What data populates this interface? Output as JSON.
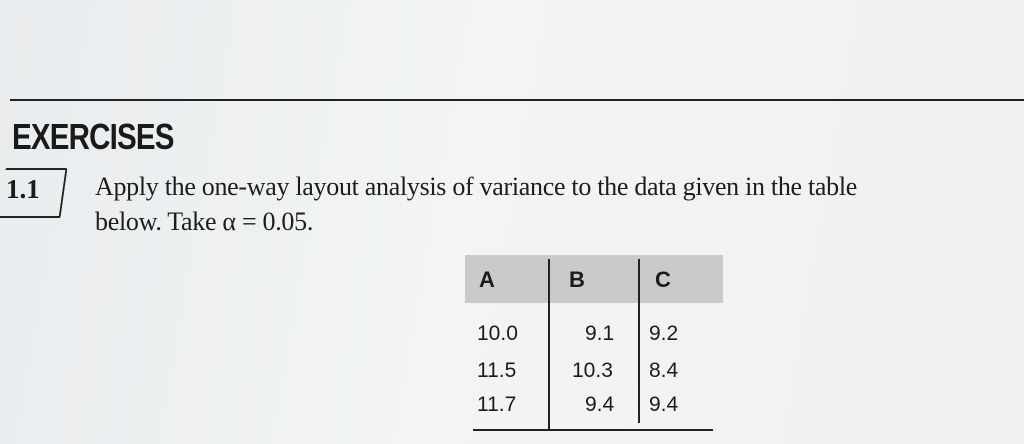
{
  "section_heading": "EXERCISES",
  "exercise": {
    "number": "1.1",
    "line1": "Apply the one-way layout analysis of variance to the data given in the table",
    "line2": "below. Take α = 0.05."
  },
  "table": {
    "headers": [
      "A",
      "B",
      "C"
    ],
    "rows": [
      [
        "10.0",
        "9.1",
        "9.2"
      ],
      [
        "11.5",
        "10.3",
        "8.4"
      ],
      [
        "11.7",
        "9.4",
        "9.4"
      ]
    ]
  }
}
